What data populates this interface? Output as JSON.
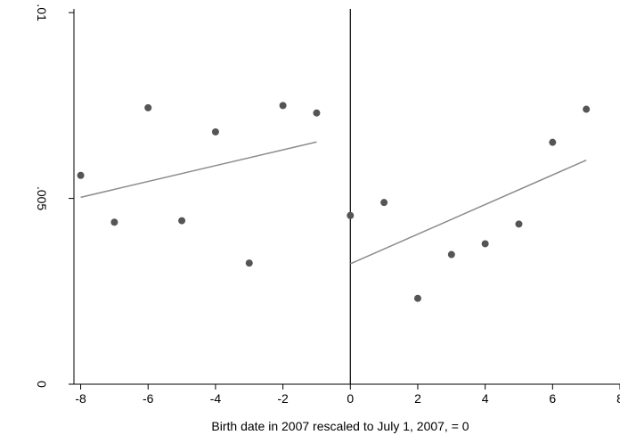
{
  "chart_data": {
    "type": "scatter",
    "title": "",
    "xlabel": "Birth date in 2007 rescaled to July 1, 2007, = 0",
    "ylabel": "",
    "xlim": [
      -8.2,
      8
    ],
    "ylim": [
      0,
      0.0101
    ],
    "x_ticks": [
      -8,
      -6,
      -4,
      -2,
      0,
      2,
      4,
      6,
      8
    ],
    "x_tick_labels": [
      "-8",
      "-6",
      "-4",
      "-2",
      "0",
      "2",
      "4",
      "6",
      "8"
    ],
    "y_ticks": [
      0,
      0.005,
      0.01
    ],
    "y_tick_labels": [
      "0",
      ".005",
      ".01"
    ],
    "grid": false,
    "cutoff_x": 0,
    "colors": {
      "points": "#555555",
      "fit": "#8c8c8c",
      "axis": "#000000"
    },
    "points": {
      "x": [
        -8,
        -7,
        -6,
        -5,
        -4,
        -3,
        -2,
        -1,
        0,
        1,
        2,
        3,
        4,
        5,
        6,
        7
      ],
      "y": [
        0.00562,
        0.00436,
        0.00744,
        0.0044,
        0.00679,
        0.00326,
        0.0075,
        0.0073,
        0.00454,
        0.00489,
        0.00231,
        0.00349,
        0.00378,
        0.00431,
        0.00651,
        0.0074
      ]
    },
    "fit_lines": [
      {
        "x": [
          -8,
          -1
        ],
        "y": [
          0.00503,
          0.00652
        ]
      },
      {
        "x": [
          0,
          7
        ],
        "y": [
          0.00324,
          0.00603
        ]
      }
    ]
  }
}
